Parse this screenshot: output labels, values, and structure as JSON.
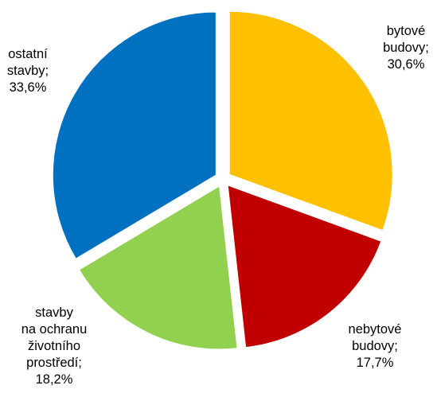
{
  "chart_data": {
    "type": "pie",
    "title": "",
    "start_angle_deg": 0,
    "direction": "clockwise",
    "exploded": true,
    "grid": false,
    "legend": "none",
    "slices": [
      {
        "label": "bytové budovy",
        "value": 30.6,
        "value_text": "30,6%",
        "label_lines": [
          "bytové",
          "budovy;",
          "30,6%"
        ],
        "color": "#FFC000"
      },
      {
        "label": "nebytové budovy",
        "value": 17.7,
        "value_text": "17,7%",
        "label_lines": [
          "nebytové",
          "budovy;",
          "17,7%"
        ],
        "color": "#C00000"
      },
      {
        "label": "stavby na ochranu životního prostředí",
        "value": 18.2,
        "value_text": "18,2%",
        "label_lines": [
          "stavby",
          "na ochranu",
          "životního",
          "prostředí;",
          "18,2%"
        ],
        "color": "#92D050"
      },
      {
        "label": "ostatní stavby",
        "value": 33.6,
        "value_text": "33,6%",
        "label_lines": [
          "ostatní",
          "stavby;",
          "33,6%"
        ],
        "color": "#0070C0"
      }
    ]
  }
}
